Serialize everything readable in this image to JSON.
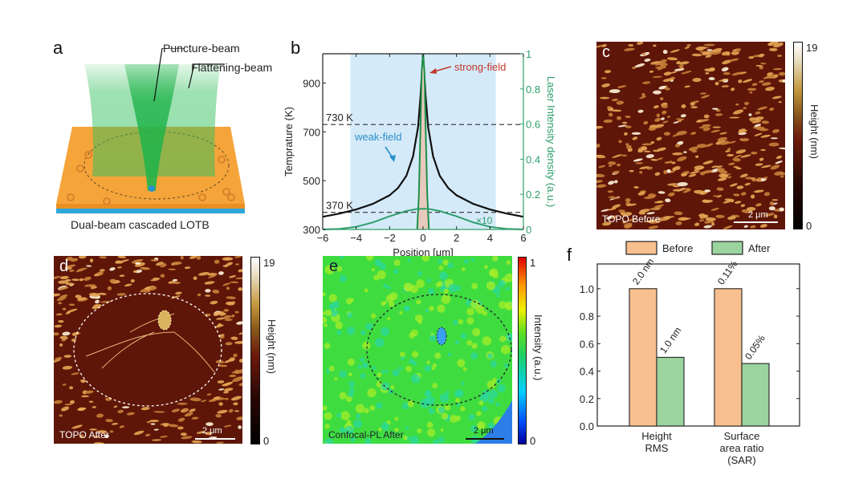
{
  "panels": {
    "a": {
      "letter": "a",
      "puncture_label": "Puncture-beam",
      "flattening_label": "Flattening-beam",
      "caption": "Dual-beam cascaded LOTB",
      "colors": {
        "substrate": "#f5a43a",
        "base": "#2fa7dc",
        "beam": "#2fbf5a",
        "spot": "#2a8fd0"
      }
    },
    "b": {
      "letter": "b"
    },
    "c": {
      "letter": "c",
      "image_label": "TOPO Before",
      "scale_bar": "2 μm",
      "colorbar": {
        "label": "Height (nm)",
        "min": "0",
        "max": "19"
      }
    },
    "d": {
      "letter": "d",
      "image_label": "TOPO After",
      "scale_bar": "2 μm",
      "colorbar": {
        "label": "Height (nm)",
        "min": "0",
        "max": "19"
      }
    },
    "e": {
      "letter": "e",
      "image_label": "Confocal-PL After",
      "scale_bar": "2 μm",
      "colorbar": {
        "label": "Intensity (a.u.)",
        "min": "0",
        "max": "1"
      }
    },
    "f": {
      "letter": "f"
    }
  },
  "chart_data": [
    {
      "id": "b",
      "type": "line",
      "xlabel": "Position [μm]",
      "ylabel": "Temprature (K)",
      "y2label": "Laser Intensity density (a.u.)",
      "xlim": [
        -6,
        6
      ],
      "ylim": [
        300,
        1020
      ],
      "y2lim": [
        0,
        1
      ],
      "xticks": [
        -6,
        -4,
        -2,
        0,
        2,
        4,
        6
      ],
      "yticks": [
        300,
        500,
        700,
        900
      ],
      "y2ticks": [
        0,
        0.2,
        0.4,
        0.6,
        0.8,
        1
      ],
      "y2ticklabels": [
        "0",
        "0.2",
        "0.4",
        "0.6",
        "0.8",
        "1"
      ],
      "shaded_region_x": [
        -4.35,
        4.35
      ],
      "hlines": [
        {
          "y": 730,
          "label": "730 K"
        },
        {
          "y": 370,
          "label": "370 K"
        }
      ],
      "annotations": [
        {
          "text": "strong-field",
          "color": "#c0392b"
        },
        {
          "text": "weak-field",
          "color": "#2a8fc9"
        },
        {
          "text": "×10",
          "color": "#2e9e6a"
        }
      ],
      "series": [
        {
          "name": "Temperature",
          "axis": "left",
          "color": "#111111",
          "x": [
            -6,
            -5,
            -4,
            -3,
            -2,
            -1.5,
            -1,
            -0.6,
            -0.3,
            -0.15,
            0,
            0.15,
            0.3,
            0.6,
            1,
            1.5,
            2,
            3,
            4,
            5,
            6
          ],
          "y": [
            352,
            365,
            382,
            405,
            440,
            470,
            520,
            600,
            720,
            850,
            1020,
            850,
            720,
            600,
            520,
            470,
            440,
            405,
            382,
            365,
            352
          ]
        },
        {
          "name": "Strong-field intensity",
          "axis": "right",
          "color": "#1f8f4a",
          "x": [
            -0.35,
            -0.25,
            -0.15,
            -0.08,
            0,
            0.08,
            0.15,
            0.25,
            0.35
          ],
          "y": [
            0,
            0.2,
            0.6,
            0.9,
            1.0,
            0.9,
            0.6,
            0.2,
            0
          ]
        },
        {
          "name": "Weak-field intensity (×10)",
          "axis": "right",
          "color": "#2e9e6a",
          "x": [
            -6,
            -5,
            -4,
            -3,
            -2,
            -1,
            -0.3,
            0,
            0.3,
            1,
            2,
            3,
            4,
            5,
            6
          ],
          "y": [
            0,
            0.003,
            0.015,
            0.04,
            0.075,
            0.105,
            0.118,
            0.118,
            0.118,
            0.105,
            0.075,
            0.04,
            0.015,
            0.003,
            0
          ]
        }
      ]
    },
    {
      "id": "f",
      "type": "bar",
      "categories": [
        "Height\nRMS",
        "Surface\narea ratio\n(SAR)"
      ],
      "category_lines": [
        [
          "Height",
          "RMS"
        ],
        [
          "Surface",
          "area ratio",
          "(SAR)"
        ]
      ],
      "ylim": [
        0,
        1.25
      ],
      "yticks": [
        "0.0",
        "0.2",
        "0.4",
        "0.6",
        "0.8",
        "1.0"
      ],
      "legend": "top",
      "series": [
        {
          "name": "Before",
          "color": "#f9c08f",
          "values": [
            1.0,
            1.0
          ],
          "labels": [
            "2.0 nm",
            "0.11%"
          ]
        },
        {
          "name": "After",
          "color": "#9bd49e",
          "values": [
            0.5,
            0.455
          ],
          "labels": [
            "1.0 nm",
            "0.05%"
          ]
        }
      ]
    }
  ]
}
